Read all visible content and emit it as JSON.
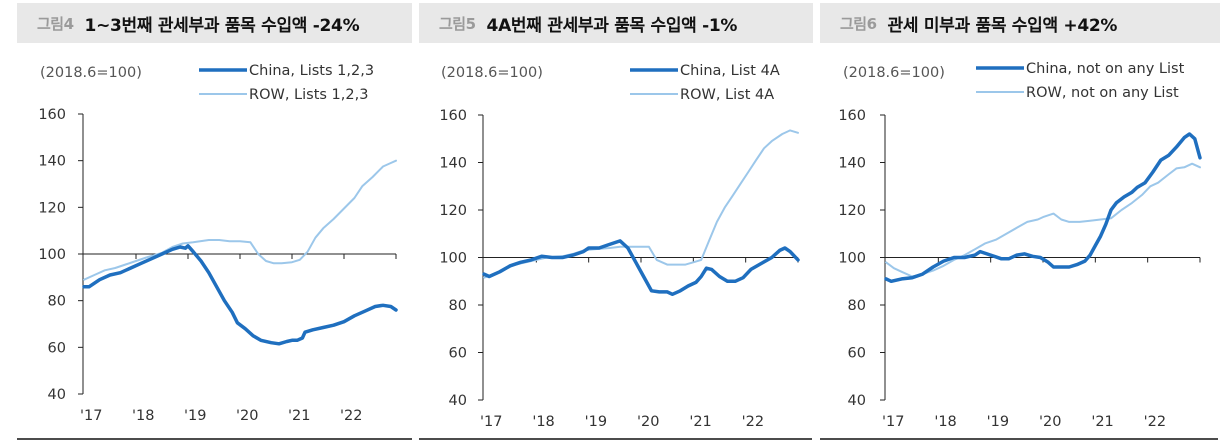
{
  "colors": {
    "china": "#1f6fbf",
    "row": "#9cc7ea",
    "header_bg": "#e8e8e8",
    "fig_no": "#9a9a9a",
    "axis": "#222222"
  },
  "panels": [
    {
      "fig_no": "그림4",
      "title": "1~3번째 관세부과 품목 수입액 -24%"
    },
    {
      "fig_no": "그림5",
      "title": "4A번째 관세부과 품목 수입액 -1%"
    },
    {
      "fig_no": "그림6",
      "title": "관세 미부과 품목 수입액 +42%"
    }
  ],
  "chart_data": [
    {
      "type": "line",
      "title": "1~3번째 관세부과 품목 수입액 -24%",
      "figure_label": "그림4",
      "unit_label": "(2018.6=100)",
      "xlabel": "",
      "ylabel": "",
      "ylim": [
        40,
        160
      ],
      "yticks": [
        40,
        60,
        80,
        100,
        120,
        140,
        160
      ],
      "xlim": [
        2017,
        2023
      ],
      "xtick_labels": [
        "'17",
        "'18",
        "'19",
        "'20",
        "'21",
        "'22"
      ],
      "reference_line": 100,
      "legend_position": "top-right",
      "series": [
        {
          "name": "China, Lists 1,2,3",
          "color": "#1f6fbf",
          "width": 3.5,
          "points": [
            [
              2017.0,
              86
            ],
            [
              2017.1,
              86
            ],
            [
              2017.3,
              89
            ],
            [
              2017.5,
              91
            ],
            [
              2017.7,
              92
            ],
            [
              2017.9,
              94
            ],
            [
              2018.1,
              96
            ],
            [
              2018.3,
              98
            ],
            [
              2018.5,
              100
            ],
            [
              2018.7,
              102
            ],
            [
              2018.85,
              103
            ],
            [
              2018.95,
              102.5
            ],
            [
              2019.0,
              103.5
            ],
            [
              2019.1,
              101
            ],
            [
              2019.25,
              97
            ],
            [
              2019.4,
              92
            ],
            [
              2019.55,
              86
            ],
            [
              2019.7,
              80
            ],
            [
              2019.85,
              75
            ],
            [
              2019.95,
              70.5
            ],
            [
              2020.1,
              68
            ],
            [
              2020.25,
              65
            ],
            [
              2020.4,
              63
            ],
            [
              2020.6,
              62
            ],
            [
              2020.75,
              61.5
            ],
            [
              2020.9,
              62.5
            ],
            [
              2021.0,
              63
            ],
            [
              2021.1,
              63
            ],
            [
              2021.2,
              64
            ],
            [
              2021.25,
              66.5
            ],
            [
              2021.4,
              67.5
            ],
            [
              2021.6,
              68.5
            ],
            [
              2021.8,
              69.5
            ],
            [
              2022.0,
              71
            ],
            [
              2022.2,
              73.5
            ],
            [
              2022.4,
              75.5
            ],
            [
              2022.6,
              77.5
            ],
            [
              2022.75,
              78
            ],
            [
              2022.9,
              77.5
            ],
            [
              2023.0,
              76
            ]
          ]
        },
        {
          "name": "ROW, Lists 1,2,3",
          "color": "#9cc7ea",
          "width": 2,
          "points": [
            [
              2017.0,
              89
            ],
            [
              2017.2,
              91
            ],
            [
              2017.4,
              93
            ],
            [
              2017.6,
              94
            ],
            [
              2017.8,
              95.5
            ],
            [
              2018.0,
              97
            ],
            [
              2018.2,
              98.5
            ],
            [
              2018.5,
              100.5
            ],
            [
              2018.7,
              103
            ],
            [
              2018.9,
              104.5
            ],
            [
              2019.1,
              105
            ],
            [
              2019.4,
              106
            ],
            [
              2019.6,
              106
            ],
            [
              2019.8,
              105.5
            ],
            [
              2020.0,
              105.5
            ],
            [
              2020.2,
              105
            ],
            [
              2020.35,
              100
            ],
            [
              2020.5,
              97
            ],
            [
              2020.65,
              96
            ],
            [
              2020.8,
              96
            ],
            [
              2021.0,
              96.5
            ],
            [
              2021.15,
              97.5
            ],
            [
              2021.3,
              101
            ],
            [
              2021.45,
              107
            ],
            [
              2021.6,
              111
            ],
            [
              2021.8,
              115
            ],
            [
              2022.0,
              119.5
            ],
            [
              2022.2,
              124
            ],
            [
              2022.35,
              129
            ],
            [
              2022.55,
              133
            ],
            [
              2022.75,
              137.5
            ],
            [
              2022.9,
              139
            ],
            [
              2023.0,
              140
            ]
          ]
        }
      ]
    },
    {
      "type": "line",
      "title": "4A번째 관세부과 품목 수입액 -1%",
      "figure_label": "그림5",
      "unit_label": "(2018.6=100)",
      "xlabel": "",
      "ylabel": "",
      "ylim": [
        40,
        160
      ],
      "yticks": [
        40,
        60,
        80,
        100,
        120,
        140,
        160
      ],
      "xlim": [
        2017,
        2023
      ],
      "xtick_labels": [
        "'17",
        "'18",
        "'19",
        "'20",
        "'21",
        "'22"
      ],
      "reference_line": 100,
      "legend_position": "top-right",
      "series": [
        {
          "name": "China, List 4A",
          "color": "#1f6fbf",
          "width": 3.5,
          "points": [
            [
              2017.0,
              93
            ],
            [
              2017.1,
              92
            ],
            [
              2017.3,
              94
            ],
            [
              2017.5,
              96.5
            ],
            [
              2017.7,
              98
            ],
            [
              2017.9,
              99
            ],
            [
              2018.1,
              100.5
            ],
            [
              2018.3,
              100
            ],
            [
              2018.5,
              100
            ],
            [
              2018.7,
              101
            ],
            [
              2018.9,
              102.5
            ],
            [
              2019.0,
              104
            ],
            [
              2019.2,
              104
            ],
            [
              2019.4,
              105.5
            ],
            [
              2019.6,
              107
            ],
            [
              2019.75,
              104
            ],
            [
              2019.9,
              98
            ],
            [
              2020.05,
              92
            ],
            [
              2020.2,
              86
            ],
            [
              2020.35,
              85.5
            ],
            [
              2020.5,
              85.5
            ],
            [
              2020.6,
              84.5
            ],
            [
              2020.75,
              86
            ],
            [
              2020.9,
              88
            ],
            [
              2021.05,
              89.5
            ],
            [
              2021.15,
              92
            ],
            [
              2021.25,
              95.5
            ],
            [
              2021.35,
              95
            ],
            [
              2021.5,
              92
            ],
            [
              2021.65,
              90
            ],
            [
              2021.8,
              90
            ],
            [
              2021.95,
              91.5
            ],
            [
              2022.1,
              95
            ],
            [
              2022.3,
              97.5
            ],
            [
              2022.5,
              100
            ],
            [
              2022.65,
              103
            ],
            [
              2022.75,
              104
            ],
            [
              2022.85,
              102.5
            ],
            [
              2023.0,
              99
            ]
          ]
        },
        {
          "name": "ROW, List 4A",
          "color": "#9cc7ea",
          "width": 2,
          "points": [
            [
              2017.0,
              91.5
            ],
            [
              2017.2,
              93
            ],
            [
              2017.4,
              95.5
            ],
            [
              2017.6,
              97
            ],
            [
              2017.8,
              98
            ],
            [
              2018.0,
              99
            ],
            [
              2018.2,
              100
            ],
            [
              2018.5,
              100.5
            ],
            [
              2018.7,
              101.5
            ],
            [
              2018.9,
              103
            ],
            [
              2019.1,
              103.5
            ],
            [
              2019.4,
              104
            ],
            [
              2019.6,
              104.5
            ],
            [
              2019.8,
              104.5
            ],
            [
              2020.0,
              104.5
            ],
            [
              2020.15,
              104.5
            ],
            [
              2020.3,
              99
            ],
            [
              2020.5,
              97
            ],
            [
              2020.7,
              97
            ],
            [
              2020.85,
              97
            ],
            [
              2021.0,
              98
            ],
            [
              2021.15,
              99
            ],
            [
              2021.3,
              107
            ],
            [
              2021.45,
              115
            ],
            [
              2021.6,
              121
            ],
            [
              2021.75,
              126
            ],
            [
              2021.9,
              131
            ],
            [
              2022.05,
              136
            ],
            [
              2022.2,
              141
            ],
            [
              2022.35,
              146
            ],
            [
              2022.5,
              149
            ],
            [
              2022.7,
              152
            ],
            [
              2022.85,
              153.5
            ],
            [
              2023.0,
              152.5
            ]
          ]
        }
      ]
    },
    {
      "type": "line",
      "title": "관세 미부과 품목 수입액 +42%",
      "figure_label": "그림6",
      "unit_label": "(2018.6=100)",
      "xlabel": "",
      "ylabel": "",
      "ylim": [
        40,
        160
      ],
      "yticks": [
        40,
        60,
        80,
        100,
        120,
        140,
        160
      ],
      "xlim": [
        2017,
        2023
      ],
      "xtick_labels": [
        "'17",
        "'18",
        "'19",
        "'20",
        "'21",
        "'22"
      ],
      "reference_line": 100,
      "legend_position": "top-right",
      "series": [
        {
          "name": "China, not on any List",
          "color": "#1f6fbf",
          "width": 3.5,
          "points": [
            [
              2017.0,
              91
            ],
            [
              2017.1,
              90
            ],
            [
              2017.3,
              91
            ],
            [
              2017.5,
              91.5
            ],
            [
              2017.7,
              93
            ],
            [
              2017.9,
              96
            ],
            [
              2018.1,
              98.5
            ],
            [
              2018.3,
              100
            ],
            [
              2018.5,
              100
            ],
            [
              2018.7,
              101
            ],
            [
              2018.8,
              102.5
            ],
            [
              2019.0,
              101
            ],
            [
              2019.2,
              99.5
            ],
            [
              2019.35,
              99.5
            ],
            [
              2019.5,
              101
            ],
            [
              2019.65,
              101.5
            ],
            [
              2019.8,
              100.5
            ],
            [
              2019.95,
              100
            ],
            [
              2020.1,
              98
            ],
            [
              2020.2,
              96
            ],
            [
              2020.35,
              96
            ],
            [
              2020.5,
              96
            ],
            [
              2020.65,
              97
            ],
            [
              2020.8,
              98.5
            ],
            [
              2020.9,
              101
            ],
            [
              2021.0,
              105
            ],
            [
              2021.1,
              109
            ],
            [
              2021.2,
              114
            ],
            [
              2021.3,
              120
            ],
            [
              2021.4,
              123
            ],
            [
              2021.55,
              125.5
            ],
            [
              2021.7,
              127.5
            ],
            [
              2021.8,
              129.5
            ],
            [
              2021.95,
              131.5
            ],
            [
              2022.1,
              136
            ],
            [
              2022.25,
              141
            ],
            [
              2022.4,
              143
            ],
            [
              2022.55,
              146.5
            ],
            [
              2022.7,
              150.5
            ],
            [
              2022.8,
              152
            ],
            [
              2022.9,
              150
            ],
            [
              2023.0,
              142
            ]
          ]
        },
        {
          "name": "ROW, not on any List",
          "color": "#9cc7ea",
          "width": 2,
          "points": [
            [
              2017.0,
              98
            ],
            [
              2017.15,
              95.5
            ],
            [
              2017.3,
              94
            ],
            [
              2017.5,
              92
            ],
            [
              2017.7,
              93
            ],
            [
              2017.9,
              94.5
            ],
            [
              2018.1,
              96.5
            ],
            [
              2018.3,
              99
            ],
            [
              2018.5,
              101
            ],
            [
              2018.7,
              103.5
            ],
            [
              2018.9,
              106
            ],
            [
              2019.1,
              107.5
            ],
            [
              2019.3,
              110
            ],
            [
              2019.5,
              112.5
            ],
            [
              2019.7,
              115
            ],
            [
              2019.9,
              116
            ],
            [
              2020.0,
              117
            ],
            [
              2020.2,
              118.5
            ],
            [
              2020.35,
              116
            ],
            [
              2020.5,
              115
            ],
            [
              2020.7,
              115
            ],
            [
              2020.9,
              115.5
            ],
            [
              2021.1,
              116
            ],
            [
              2021.3,
              116.5
            ],
            [
              2021.5,
              120
            ],
            [
              2021.7,
              123
            ],
            [
              2021.9,
              126.5
            ],
            [
              2022.05,
              130
            ],
            [
              2022.2,
              131.5
            ],
            [
              2022.4,
              135
            ],
            [
              2022.55,
              137.5
            ],
            [
              2022.7,
              138
            ],
            [
              2022.85,
              139.5
            ],
            [
              2023.0,
              138
            ]
          ]
        }
      ]
    }
  ]
}
